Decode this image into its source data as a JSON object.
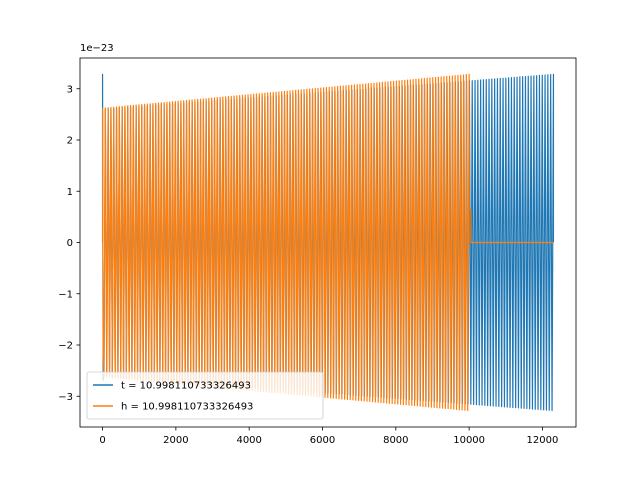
{
  "chart_data": {
    "type": "line",
    "title": "",
    "xlabel": "",
    "ylabel": "",
    "y_offset_label": "1e−23",
    "xlim": [
      -615,
      12915
    ],
    "ylim": [
      -3.6e-23,
      3.6e-23
    ],
    "x_ticks": [
      0,
      2000,
      4000,
      6000,
      8000,
      10000,
      12000
    ],
    "x_tick_labels": [
      "0",
      "2000",
      "4000",
      "6000",
      "8000",
      "10000",
      "12000"
    ],
    "y_ticks": [
      -3e-23,
      -2e-23,
      -1e-23,
      0,
      1e-23,
      2e-23,
      3e-23
    ],
    "y_tick_labels": [
      "−3",
      "−2",
      "−1",
      "0",
      "1",
      "2",
      "3"
    ],
    "grid": false,
    "legend_position": "lower-left",
    "series": [
      {
        "name": "t = 10.998110733326493",
        "color": "#1f77b4",
        "x_start": 0,
        "x_end": 12300,
        "amplitude_start": 2.6e-23,
        "amplitude_end": 3.28e-23,
        "initial_peak": 3.28e-23,
        "tail_after": null
      },
      {
        "name": "h = 10.998110733326493",
        "color": "#ff7f0e",
        "x_start": 0,
        "x_end": 10000,
        "amplitude_start": 2.62e-23,
        "amplitude_end": 3.28e-23,
        "initial_peak": 2.62e-23,
        "tail_after": {
          "x_from": 10050,
          "x_to": 12300,
          "value": 0
        }
      }
    ]
  }
}
